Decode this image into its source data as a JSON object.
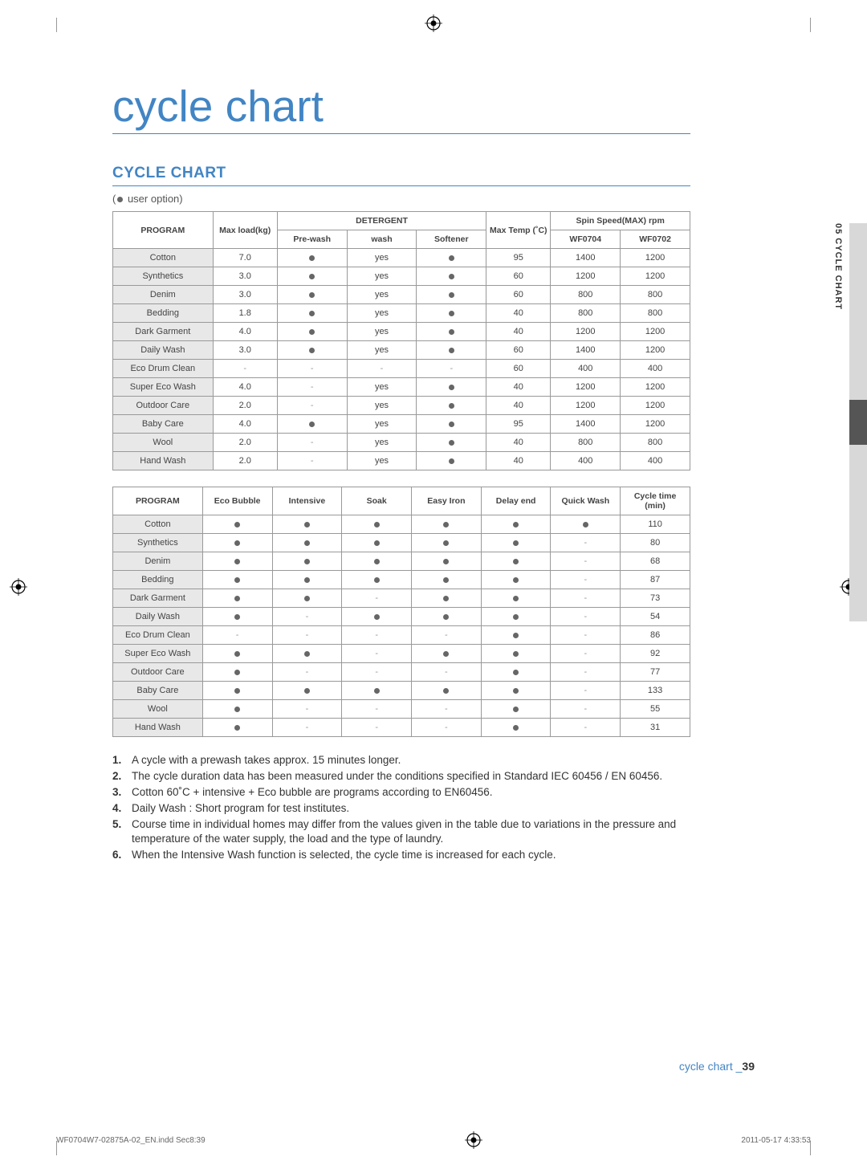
{
  "title": "cycle chart",
  "sectionHeader": "CYCLE CHART",
  "legendPrefix": "(",
  "legendSuffix": " user option)",
  "sideTab": "05 CYCLE CHART",
  "footerText": "cycle chart",
  "footerSep": " _",
  "footerPage": "39",
  "printFile": "WF0704W7-02875A-02_EN.indd   Sec8:39",
  "printDate": "2011-05-17     4:33:53",
  "table1": {
    "headers": {
      "program": "PROGRAM",
      "maxLoad": "Max load(kg)",
      "detergent": "DETERGENT",
      "prewash": "Pre-wash",
      "wash": "wash",
      "softener": "Softener",
      "maxTemp": "Max Temp (˚C)",
      "spinSpeed": "Spin Speed(MAX) rpm",
      "wf0704": "WF0704",
      "wf0702": "WF0702"
    },
    "rows": [
      {
        "program": "Cotton",
        "load": "7.0",
        "prewash": "dot",
        "wash": "yes",
        "softener": "dot",
        "temp": "95",
        "s1": "1400",
        "s2": "1200"
      },
      {
        "program": "Synthetics",
        "load": "3.0",
        "prewash": "dot",
        "wash": "yes",
        "softener": "dot",
        "temp": "60",
        "s1": "1200",
        "s2": "1200"
      },
      {
        "program": "Denim",
        "load": "3.0",
        "prewash": "dot",
        "wash": "yes",
        "softener": "dot",
        "temp": "60",
        "s1": "800",
        "s2": "800"
      },
      {
        "program": "Bedding",
        "load": "1.8",
        "prewash": "dot",
        "wash": "yes",
        "softener": "dot",
        "temp": "40",
        "s1": "800",
        "s2": "800"
      },
      {
        "program": "Dark Garment",
        "load": "4.0",
        "prewash": "dot",
        "wash": "yes",
        "softener": "dot",
        "temp": "40",
        "s1": "1200",
        "s2": "1200"
      },
      {
        "program": "Daily Wash",
        "load": "3.0",
        "prewash": "dot",
        "wash": "yes",
        "softener": "dot",
        "temp": "60",
        "s1": "1400",
        "s2": "1200"
      },
      {
        "program": "Eco Drum Clean",
        "load": "-",
        "prewash": "-",
        "wash": "-",
        "softener": "-",
        "temp": "60",
        "s1": "400",
        "s2": "400"
      },
      {
        "program": "Super Eco Wash",
        "load": "4.0",
        "prewash": "-",
        "wash": "yes",
        "softener": "dot",
        "temp": "40",
        "s1": "1200",
        "s2": "1200"
      },
      {
        "program": "Outdoor Care",
        "load": "2.0",
        "prewash": "-",
        "wash": "yes",
        "softener": "dot",
        "temp": "40",
        "s1": "1200",
        "s2": "1200"
      },
      {
        "program": "Baby Care",
        "load": "4.0",
        "prewash": "dot",
        "wash": "yes",
        "softener": "dot",
        "temp": "95",
        "s1": "1400",
        "s2": "1200"
      },
      {
        "program": "Wool",
        "load": "2.0",
        "prewash": "-",
        "wash": "yes",
        "softener": "dot",
        "temp": "40",
        "s1": "800",
        "s2": "800"
      },
      {
        "program": "Hand Wash",
        "load": "2.0",
        "prewash": "-",
        "wash": "yes",
        "softener": "dot",
        "temp": "40",
        "s1": "400",
        "s2": "400"
      }
    ]
  },
  "table2": {
    "headers": {
      "program": "PROGRAM",
      "eco": "Eco Bubble",
      "intensive": "Intensive",
      "soak": "Soak",
      "easyIron": "Easy Iron",
      "delay": "Delay end",
      "quick": "Quick Wash",
      "cycleTime": "Cycle time (min)"
    },
    "rows": [
      {
        "program": "Cotton",
        "eco": "dot",
        "int": "dot",
        "soak": "dot",
        "iron": "dot",
        "delay": "dot",
        "quick": "dot",
        "time": "110"
      },
      {
        "program": "Synthetics",
        "eco": "dot",
        "int": "dot",
        "soak": "dot",
        "iron": "dot",
        "delay": "dot",
        "quick": "-",
        "time": "80"
      },
      {
        "program": "Denim",
        "eco": "dot",
        "int": "dot",
        "soak": "dot",
        "iron": "dot",
        "delay": "dot",
        "quick": "-",
        "time": "68"
      },
      {
        "program": "Bedding",
        "eco": "dot",
        "int": "dot",
        "soak": "dot",
        "iron": "dot",
        "delay": "dot",
        "quick": "-",
        "time": "87"
      },
      {
        "program": "Dark Garment",
        "eco": "dot",
        "int": "dot",
        "soak": "-",
        "iron": "dot",
        "delay": "dot",
        "quick": "-",
        "time": "73"
      },
      {
        "program": "Daily Wash",
        "eco": "dot",
        "int": "-",
        "soak": "dot",
        "iron": "dot",
        "delay": "dot",
        "quick": "-",
        "time": "54"
      },
      {
        "program": "Eco Drum Clean",
        "eco": "-",
        "int": "-",
        "soak": "-",
        "iron": "-",
        "delay": "dot",
        "quick": "-",
        "time": "86"
      },
      {
        "program": "Super Eco Wash",
        "eco": "dot",
        "int": "dot",
        "soak": "-",
        "iron": "dot",
        "delay": "dot",
        "quick": "-",
        "time": "92"
      },
      {
        "program": "Outdoor Care",
        "eco": "dot",
        "int": "-",
        "soak": "-",
        "iron": "-",
        "delay": "dot",
        "quick": "-",
        "time": "77"
      },
      {
        "program": "Baby Care",
        "eco": "dot",
        "int": "dot",
        "soak": "dot",
        "iron": "dot",
        "delay": "dot",
        "quick": "-",
        "time": "133"
      },
      {
        "program": "Wool",
        "eco": "dot",
        "int": "-",
        "soak": "-",
        "iron": "-",
        "delay": "dot",
        "quick": "-",
        "time": "55"
      },
      {
        "program": "Hand Wash",
        "eco": "dot",
        "int": "-",
        "soak": "-",
        "iron": "-",
        "delay": "dot",
        "quick": "-",
        "time": "31"
      }
    ]
  },
  "notes": [
    "A cycle with a prewash takes approx. 15 minutes longer.",
    "The cycle duration data has been measured under the conditions specified in Standard IEC 60456 / EN 60456.",
    "Cotton 60˚C + intensive + Eco bubble are programs according to EN60456.",
    "Daily Wash : Short program for test institutes.",
    "Course time in individual homes may differ from the values given in the table due to variations in the pressure and temperature of the water supply, the load and the type of laundry.",
    "When the Intensive Wash function is selected, the cycle time is increased for each cycle."
  ]
}
